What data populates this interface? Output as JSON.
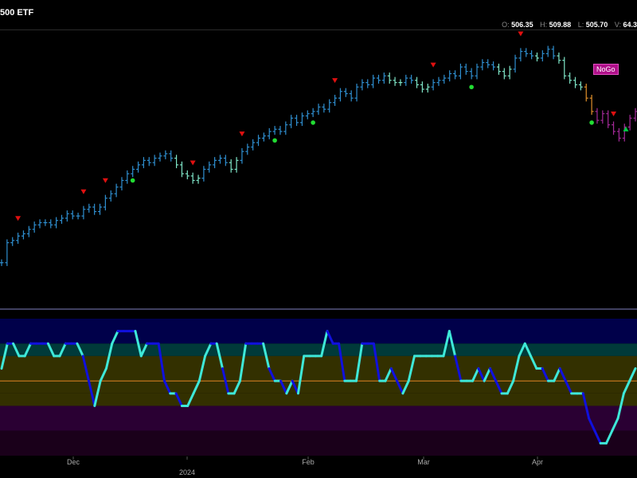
{
  "header": {
    "title": "500 ETF",
    "ohlcv": {
      "o_label": "O:",
      "o": "506.35",
      "h_label": "H:",
      "h": "509.88",
      "l_label": "L:",
      "l": "505.70",
      "v_label": "V:",
      "v": "64.3"
    }
  },
  "signal_label": "NoGo",
  "colors": {
    "go_strong": "#2f8fd0",
    "go_weak": "#7fe6c8",
    "nogo_weak": "#e0902a",
    "nogo_strong": "#a52a9a",
    "up_triangle": "#00cc44",
    "down_triangle": "#e01010",
    "dot": "#22dd33",
    "osc_aqua": "#3ee8d8",
    "osc_blue": "#1010dd",
    "zero_line": "#d07a20",
    "band1": "#00004a",
    "band2": "#003a3a",
    "band3": "#333000",
    "band4": "#2a0033",
    "band5": "#1a001a",
    "divider": "#8080c0"
  },
  "chart_data": [
    {
      "type": "ohlc",
      "x_axis_labels": [
        "Dec",
        "2024",
        "Feb",
        "Mar",
        "Apr"
      ],
      "closes": [
        438,
        447,
        448,
        450,
        451,
        453,
        455,
        456,
        456,
        455,
        457,
        458,
        460,
        459,
        459,
        462,
        463,
        461,
        463,
        467,
        469,
        472,
        475,
        478,
        480,
        482,
        484,
        483,
        485,
        486,
        487,
        485,
        482,
        478,
        477,
        475,
        476,
        480,
        482,
        484,
        485,
        483,
        480,
        484,
        488,
        490,
        492,
        494,
        495,
        497,
        498,
        497,
        500,
        503,
        501,
        504,
        505,
        506,
        508,
        507,
        510,
        512,
        515,
        514,
        512,
        517,
        519,
        518,
        521,
        520,
        522,
        520,
        519,
        519,
        521,
        520,
        518,
        516,
        517,
        519,
        520,
        521,
        523,
        522,
        526,
        524,
        522,
        526,
        528,
        527,
        526,
        524,
        522,
        525,
        530,
        533,
        532,
        531,
        530,
        532,
        534,
        531,
        529,
        522,
        520,
        518,
        517,
        512,
        506,
        502,
        505,
        500,
        497,
        494,
        499,
        503,
        506
      ],
      "ylim": [
        420,
        540
      ],
      "signal_markers": {
        "down": [
          3,
          15,
          19,
          35,
          44,
          61,
          79,
          95,
          112
        ],
        "up": [
          128
        ]
      },
      "dot_markers": [
        24,
        50,
        57,
        86,
        108
      ]
    },
    {
      "type": "line",
      "name": "oscillator",
      "values": [
        1,
        3,
        3,
        2,
        2,
        3,
        3,
        3,
        3,
        2,
        2,
        3,
        3,
        3,
        2,
        0,
        -2,
        0,
        1,
        3,
        4,
        4,
        4,
        4,
        2,
        3,
        3,
        3,
        0,
        -1,
        -1,
        -2,
        -2,
        -1,
        0,
        2,
        3,
        3,
        1,
        -1,
        -1,
        0,
        3,
        3,
        3,
        3,
        1,
        0,
        0,
        -1,
        0,
        -1,
        2,
        2,
        2,
        2,
        4,
        3,
        3,
        0,
        0,
        0,
        3,
        3,
        3,
        0,
        0,
        1,
        0,
        -1,
        0,
        2,
        2,
        2,
        2,
        2,
        2,
        4,
        2,
        0,
        0,
        0,
        1,
        0,
        1,
        0,
        -1,
        -1,
        0,
        2,
        3,
        2,
        1,
        1,
        0,
        0,
        1,
        0,
        -1,
        -1,
        -1,
        -3,
        -4,
        -5,
        -5,
        -4,
        -3,
        -1,
        0,
        1
      ],
      "ylim": [
        -6,
        5
      ]
    }
  ]
}
